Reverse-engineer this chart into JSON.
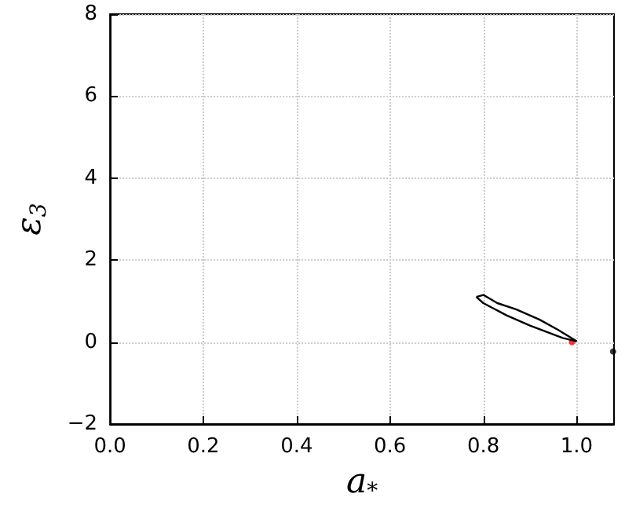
{
  "chart_data": {
    "type": "line",
    "xlabel": "a$_{*}$",
    "ylabel": "ε$_{3}$",
    "xlim": [
      0,
      1.08
    ],
    "xticks": [
      {
        "value": 0,
        "label": "0.0"
      },
      {
        "value": 0.2,
        "label": "0.2"
      },
      {
        "value": 0.4,
        "label": "0.4"
      },
      {
        "value": 0.6,
        "label": "0.6"
      },
      {
        "value": 0.8,
        "label": "0.8"
      },
      {
        "value": 1.0,
        "label": "1.0"
      }
    ],
    "ylim": [
      -2,
      8
    ],
    "yticks": [
      {
        "value": -2,
        "label": "−2"
      },
      0,
      2,
      4,
      6,
      8
    ],
    "grid": true,
    "series": [
      {
        "color": "#000000",
        "x": [
          0.785,
          0.8,
          0.83,
          0.87,
          0.92,
          0.96,
          1.0
        ],
        "values": [
          1.1,
          1.15,
          0.95,
          0.8,
          0.55,
          0.3,
          0.02
        ]
      },
      {
        "color": "#000000",
        "x": [
          0.785,
          0.8,
          0.85,
          0.9,
          0.97,
          1.0
        ],
        "values": [
          1.1,
          0.95,
          0.65,
          0.4,
          0.1,
          0.02
        ]
      },
      {
        "type": "scatter",
        "marker": "circle",
        "color": "#ff0000",
        "x": [
          0.99
        ],
        "values": [
          0.0
        ]
      },
      {
        "type": "scatter",
        "marker": "circle",
        "color": "#000000",
        "x": [
          1.078
        ],
        "values": [
          -0.23
        ]
      }
    ]
  }
}
